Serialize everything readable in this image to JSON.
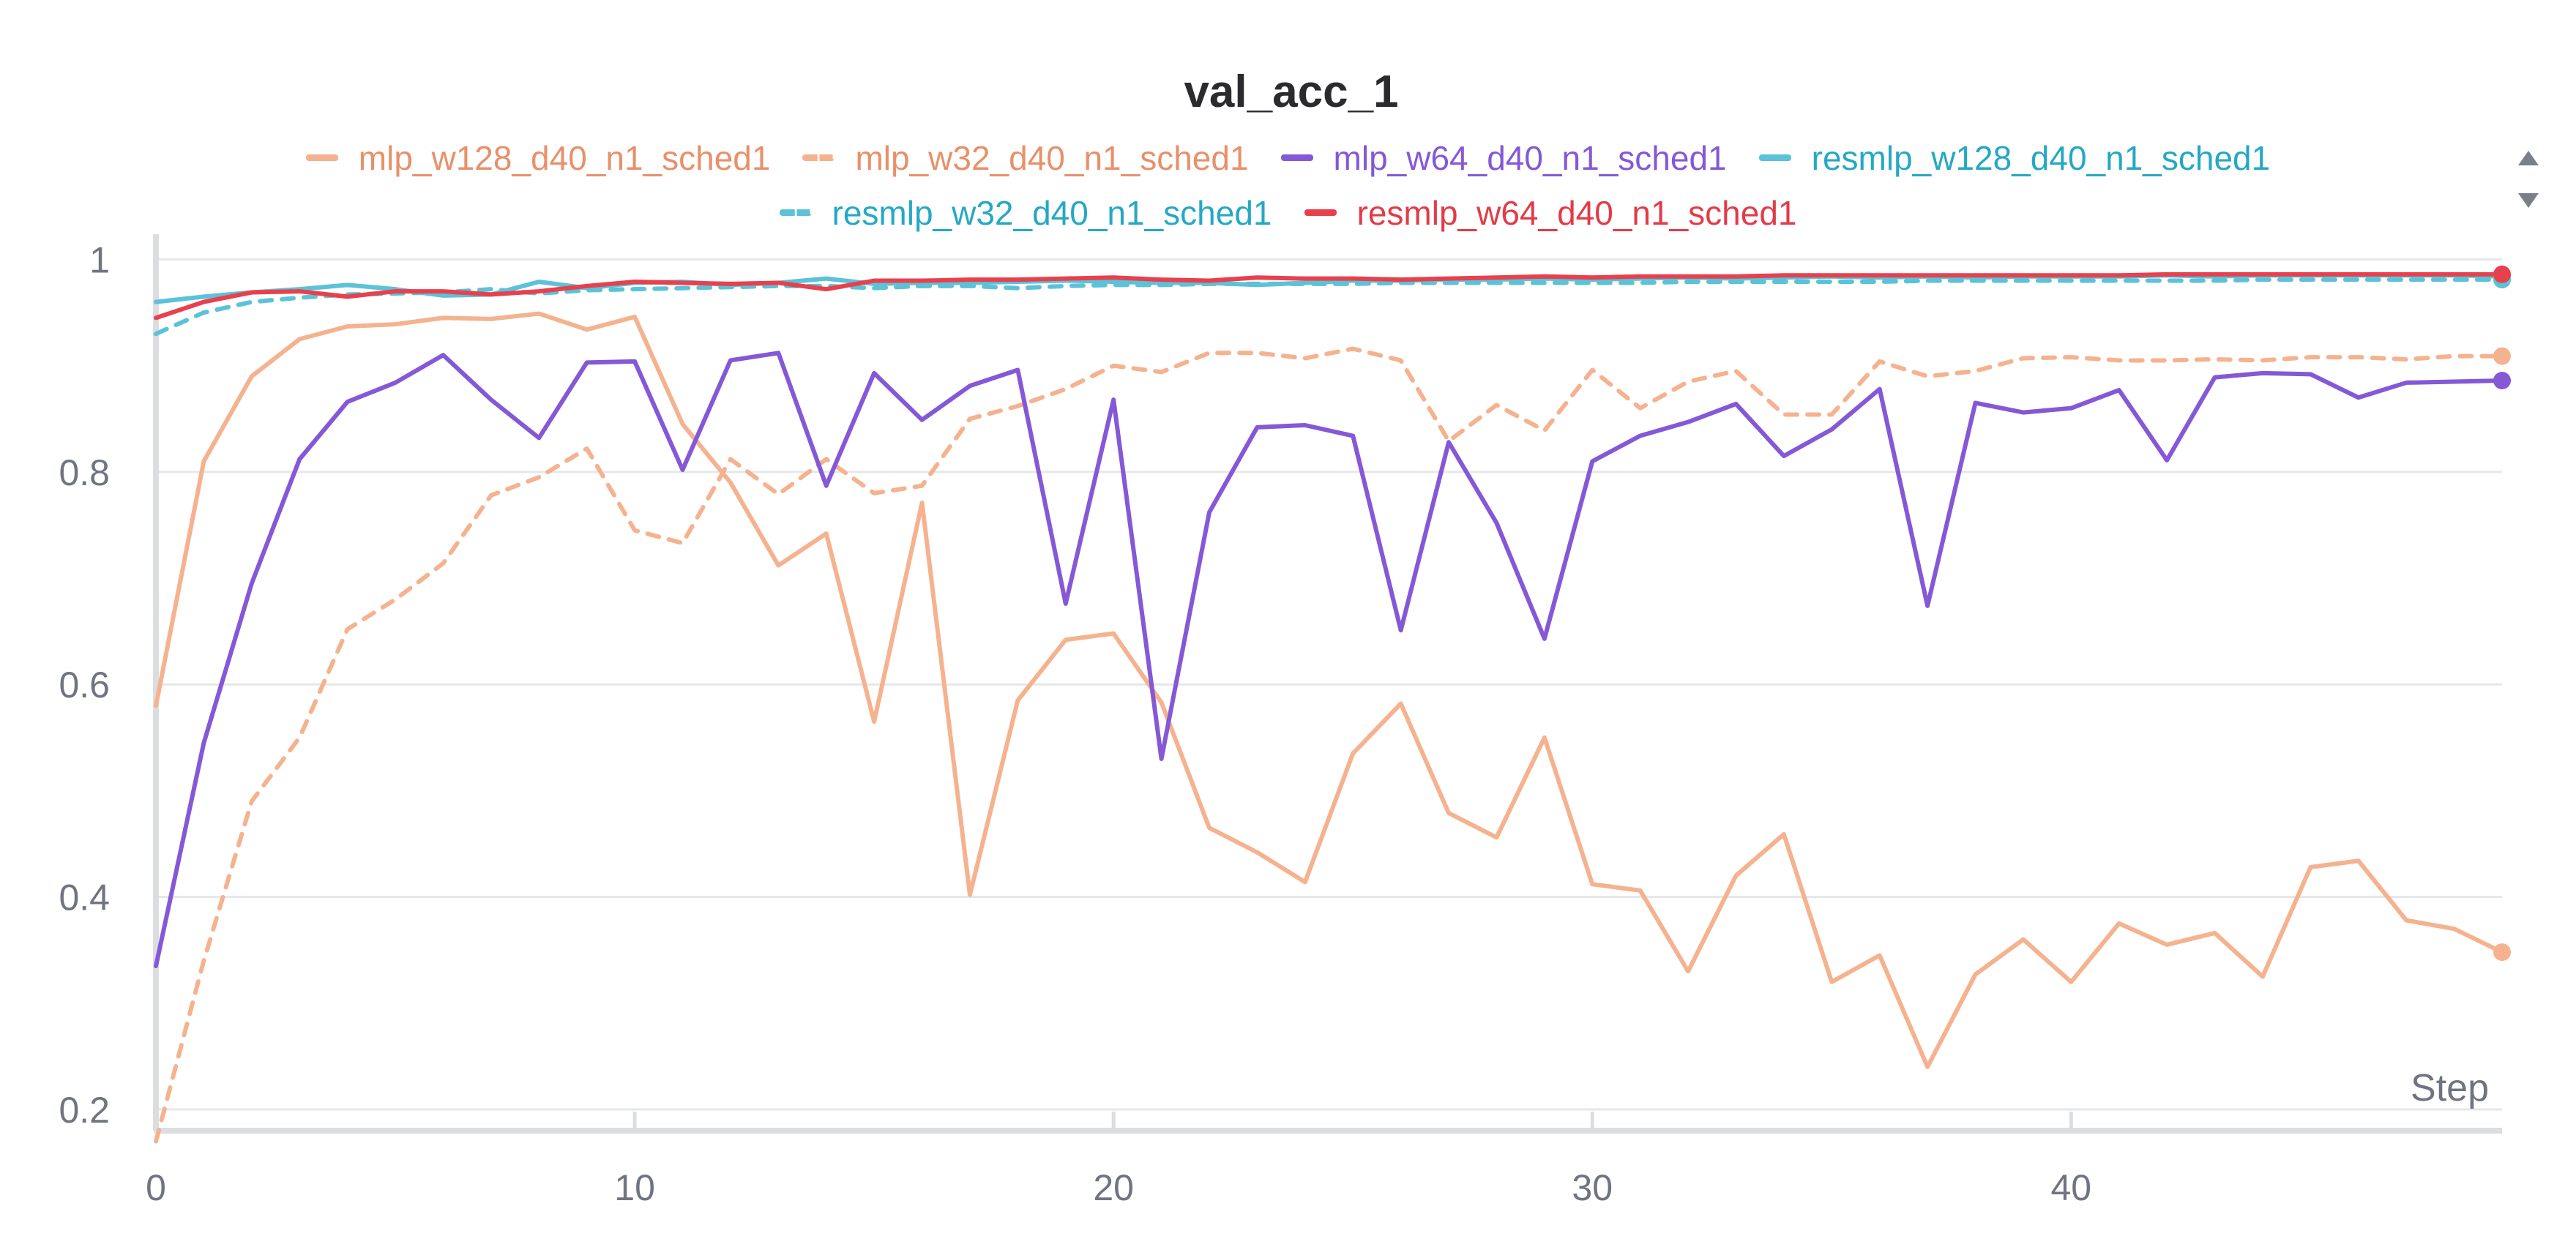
{
  "chart_data": {
    "type": "line",
    "title": "val_acc_1",
    "xlabel": "Step",
    "ylabel": "",
    "xlim": [
      0,
      49
    ],
    "ylim": [
      0.18,
      1.01
    ],
    "x_ticks": [
      0,
      10,
      20,
      30,
      40
    ],
    "y_ticks": [
      0.2,
      0.4,
      0.6,
      0.8,
      1
    ],
    "y_tick_labels": [
      "0.2",
      "0.4",
      "0.6",
      "0.8",
      "1"
    ],
    "grid": true,
    "legend_position": "top",
    "series": [
      {
        "name": "mlp_w128_d40_n1_sched1",
        "color": "#f5b28f",
        "label_color": "#e8906a",
        "dashed": false,
        "values": [
          0.58,
          0.81,
          0.89,
          0.925,
          0.937,
          0.939,
          0.945,
          0.944,
          0.949,
          0.934,
          0.946,
          0.845,
          0.79,
          0.712,
          0.742,
          0.565,
          0.771,
          0.402,
          0.585,
          0.642,
          0.648,
          0.583,
          0.465,
          0.442,
          0.414,
          0.535,
          0.582,
          0.479,
          0.456,
          0.55,
          0.412,
          0.406,
          0.33,
          0.42,
          0.459,
          0.32,
          0.345,
          0.24,
          0.327,
          0.36,
          0.32,
          0.375,
          0.355,
          0.366,
          0.325,
          0.428,
          0.434,
          0.378,
          0.37,
          0.348
        ]
      },
      {
        "name": "mlp_w32_d40_n1_sched1",
        "color": "#f5b28f",
        "label_color": "#e8906a",
        "dashed": true,
        "values": [
          0.17,
          0.34,
          0.49,
          0.55,
          0.652,
          0.68,
          0.714,
          0.778,
          0.795,
          0.822,
          0.745,
          0.733,
          0.812,
          0.779,
          0.812,
          0.78,
          0.787,
          0.85,
          0.862,
          0.878,
          0.9,
          0.894,
          0.912,
          0.912,
          0.907,
          0.916,
          0.905,
          0.829,
          0.863,
          0.839,
          0.896,
          0.86,
          0.885,
          0.895,
          0.854,
          0.854,
          0.904,
          0.89,
          0.895,
          0.907,
          0.908,
          0.905,
          0.905,
          0.906,
          0.905,
          0.908,
          0.908,
          0.906,
          0.909,
          0.909
        ]
      },
      {
        "name": "mlp_w64_d40_n1_sched1",
        "color": "#8458d6",
        "label_color": "#8458d6",
        "dashed": false,
        "values": [
          0.335,
          0.545,
          0.695,
          0.812,
          0.866,
          0.884,
          0.91,
          0.868,
          0.832,
          0.903,
          0.904,
          0.802,
          0.905,
          0.912,
          0.787,
          0.893,
          0.849,
          0.881,
          0.896,
          0.676,
          0.868,
          0.53,
          0.762,
          0.842,
          0.844,
          0.834,
          0.651,
          0.828,
          0.752,
          0.643,
          0.81,
          0.834,
          0.847,
          0.864,
          0.815,
          0.84,
          0.878,
          0.674,
          0.865,
          0.856,
          0.86,
          0.877,
          0.811,
          0.889,
          0.893,
          0.892,
          0.87,
          0.884,
          0.885,
          0.886
        ]
      },
      {
        "name": "resmlp_w128_d40_n1_sched1",
        "color": "#5bc2d8",
        "label_color": "#25a8c4",
        "dashed": false,
        "values": [
          0.96,
          0.965,
          0.969,
          0.972,
          0.976,
          0.972,
          0.966,
          0.967,
          0.979,
          0.973,
          0.978,
          0.979,
          0.976,
          0.978,
          0.982,
          0.977,
          0.978,
          0.978,
          0.979,
          0.98,
          0.979,
          0.978,
          0.978,
          0.976,
          0.978,
          0.98,
          0.98,
          0.981,
          0.981,
          0.982,
          0.981,
          0.982,
          0.983,
          0.982,
          0.983,
          0.984,
          0.983,
          0.984,
          0.983,
          0.984,
          0.984,
          0.984,
          0.985,
          0.984,
          0.985,
          0.985,
          0.985,
          0.985,
          0.985,
          0.984
        ]
      },
      {
        "name": "resmlp_w32_d40_n1_sched1",
        "color": "#5bc2d8",
        "label_color": "#25a8c4",
        "dashed": true,
        "values": [
          0.93,
          0.95,
          0.96,
          0.964,
          0.967,
          0.968,
          0.969,
          0.972,
          0.968,
          0.971,
          0.972,
          0.973,
          0.974,
          0.975,
          0.975,
          0.973,
          0.975,
          0.975,
          0.973,
          0.975,
          0.976,
          0.976,
          0.977,
          0.977,
          0.977,
          0.977,
          0.978,
          0.978,
          0.978,
          0.978,
          0.978,
          0.978,
          0.979,
          0.979,
          0.979,
          0.979,
          0.979,
          0.98,
          0.98,
          0.98,
          0.98,
          0.98,
          0.98,
          0.98,
          0.981,
          0.981,
          0.981,
          0.981,
          0.981,
          0.981
        ]
      },
      {
        "name": "resmlp_w64_d40_n1_sched1",
        "color": "#e8404c",
        "label_color": "#e23b48",
        "dashed": false,
        "values": [
          0.945,
          0.96,
          0.969,
          0.97,
          0.965,
          0.97,
          0.97,
          0.967,
          0.97,
          0.975,
          0.979,
          0.978,
          0.977,
          0.978,
          0.972,
          0.98,
          0.98,
          0.981,
          0.981,
          0.982,
          0.983,
          0.981,
          0.98,
          0.983,
          0.982,
          0.982,
          0.981,
          0.982,
          0.983,
          0.984,
          0.983,
          0.984,
          0.984,
          0.984,
          0.985,
          0.985,
          0.985,
          0.985,
          0.985,
          0.985,
          0.985,
          0.985,
          0.986,
          0.986,
          0.986,
          0.986,
          0.986,
          0.986,
          0.986,
          0.986
        ]
      }
    ]
  },
  "legend_scroll": {
    "up_icon": "triangle-up",
    "down_icon": "triangle-down"
  }
}
